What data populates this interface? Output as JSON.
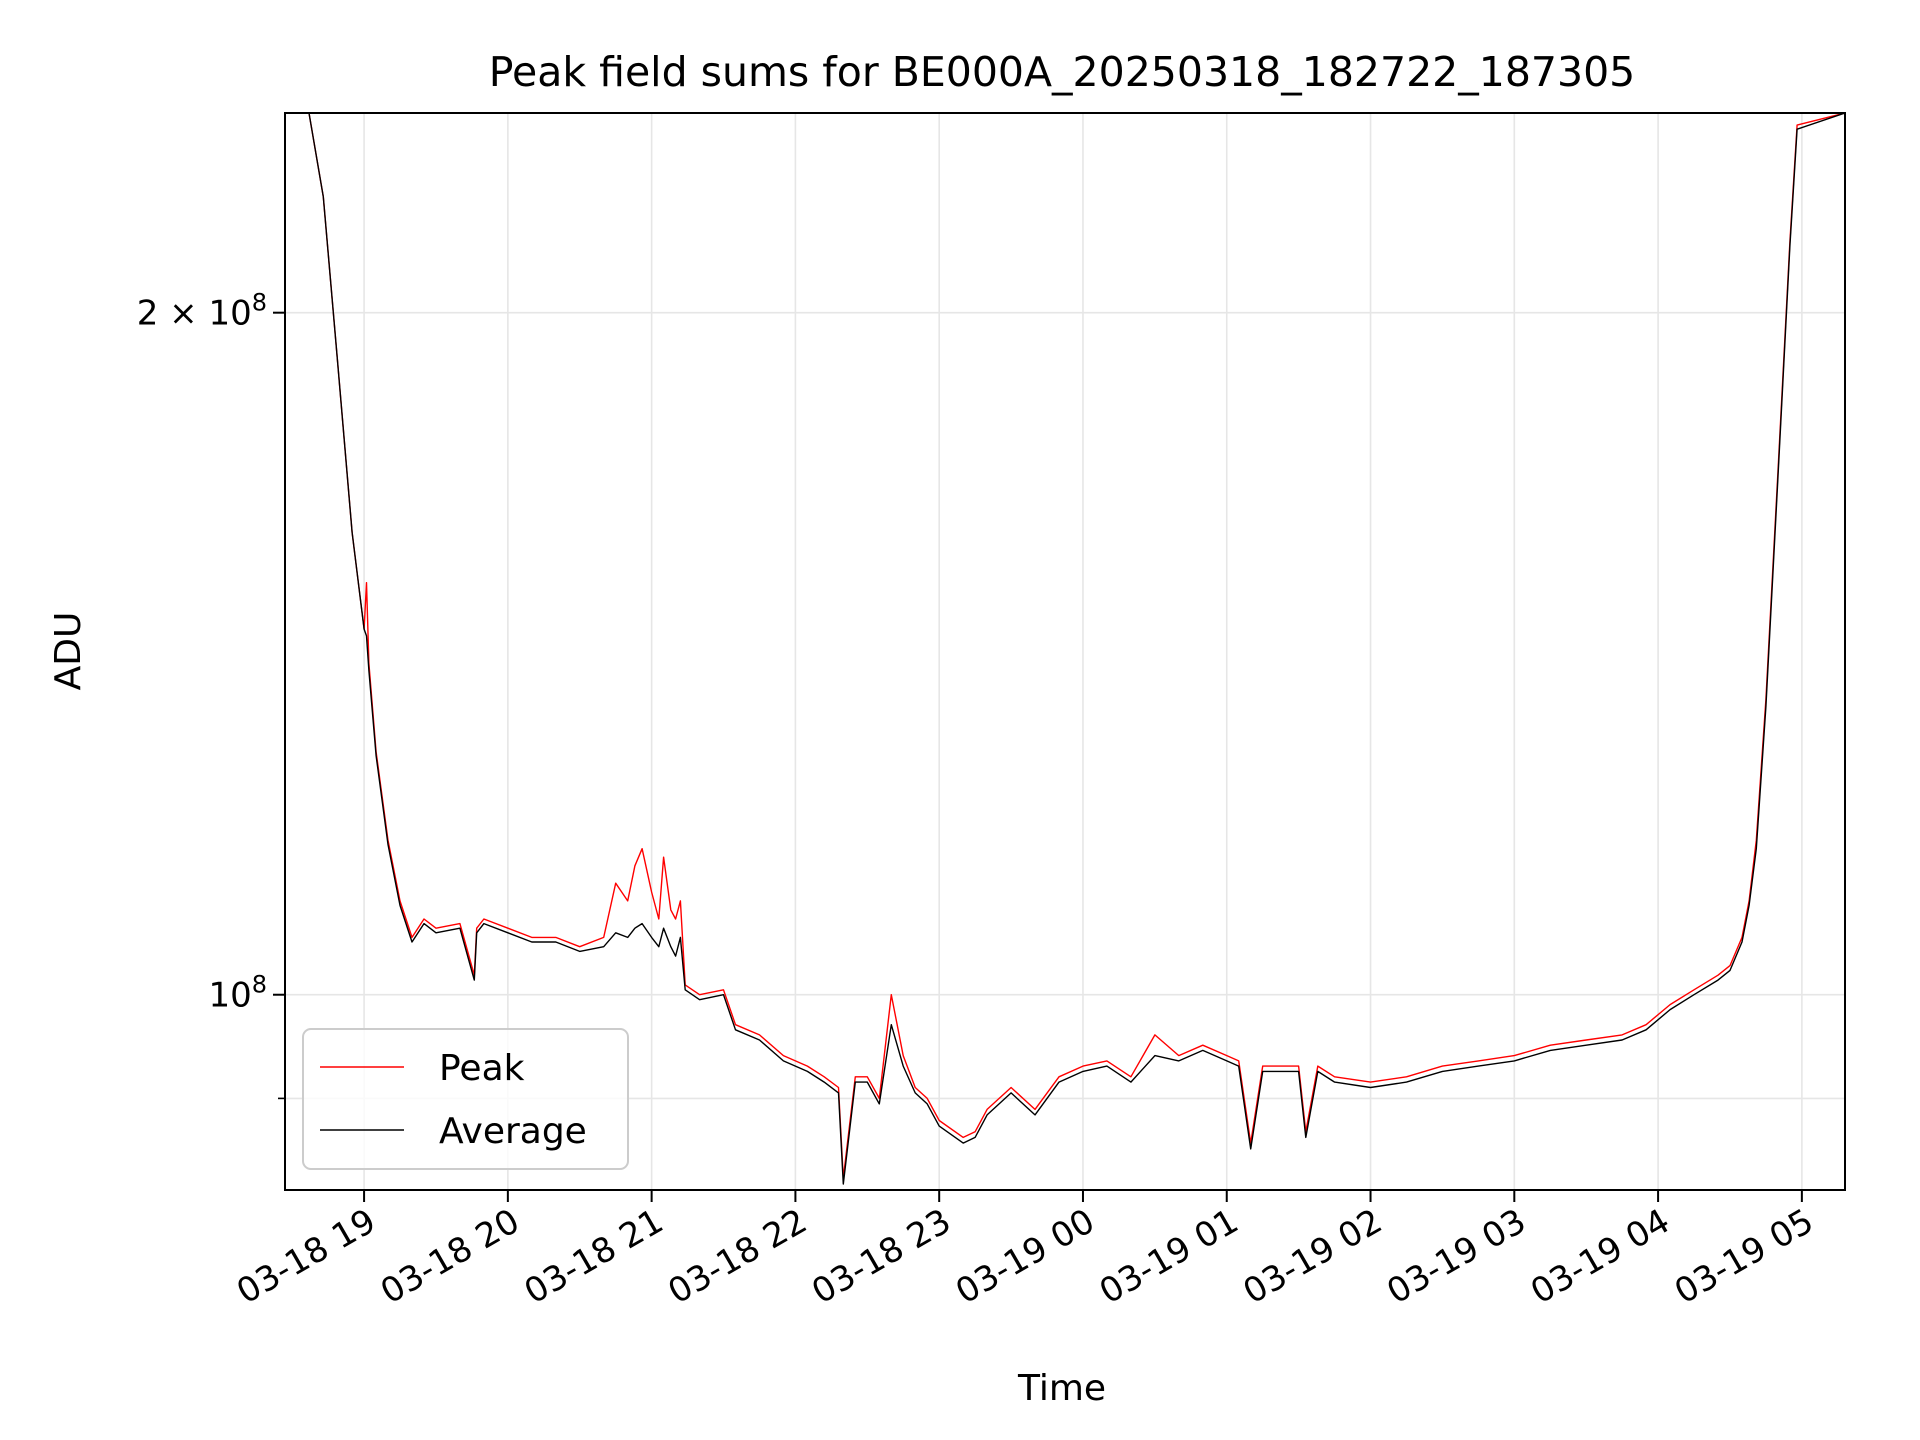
{
  "chart_data": {
    "type": "line",
    "title": "Peak field sums for BE000A_20250318_182722_187305",
    "xlabel": "Time",
    "ylabel": "ADU",
    "y_scale": "log",
    "ylim": [
      82000000,
      245000000
    ],
    "xlim": [
      "2025-03-18 18:27",
      "2025-03-19 05:18"
    ],
    "grid": true,
    "legend_position": "lower-left",
    "x_ticks": [
      {
        "label": "03-18 19",
        "t": "2025-03-18 19:00"
      },
      {
        "label": "03-18 20",
        "t": "2025-03-18 20:00"
      },
      {
        "label": "03-18 21",
        "t": "2025-03-18 21:00"
      },
      {
        "label": "03-18 22",
        "t": "2025-03-18 22:00"
      },
      {
        "label": "03-18 23",
        "t": "2025-03-18 23:00"
      },
      {
        "label": "03-19 00",
        "t": "2025-03-19 00:00"
      },
      {
        "label": "03-19 01",
        "t": "2025-03-19 01:00"
      },
      {
        "label": "03-19 02",
        "t": "2025-03-19 02:00"
      },
      {
        "label": "03-19 03",
        "t": "2025-03-19 03:00"
      },
      {
        "label": "03-19 04",
        "t": "2025-03-19 04:00"
      },
      {
        "label": "03-19 05",
        "t": "2025-03-19 05:00"
      }
    ],
    "y_ticks": [
      {
        "label": "2 × 10",
        "exp": "8",
        "value": 200000000
      },
      {
        "label": "10",
        "exp": "8",
        "value": 100000000
      }
    ],
    "y_minor_ticks": [
      90000000
    ],
    "series": [
      {
        "name": "Peak",
        "color": "#ff0000",
        "x": [
          "2025-03-18 18:27",
          "2025-03-18 18:37",
          "2025-03-18 18:43",
          "2025-03-18 18:49",
          "2025-03-18 18:55",
          "2025-03-18 19:00",
          "2025-03-18 19:01",
          "2025-03-18 19:02",
          "2025-03-18 19:05",
          "2025-03-18 19:10",
          "2025-03-18 19:15",
          "2025-03-18 19:20",
          "2025-03-18 19:25",
          "2025-03-18 19:30",
          "2025-03-18 19:40",
          "2025-03-18 19:46",
          "2025-03-18 19:47",
          "2025-03-18 19:50",
          "2025-03-18 20:00",
          "2025-03-18 20:10",
          "2025-03-18 20:20",
          "2025-03-18 20:30",
          "2025-03-18 20:40",
          "2025-03-18 20:45",
          "2025-03-18 20:50",
          "2025-03-18 20:53",
          "2025-03-18 20:56",
          "2025-03-18 21:00",
          "2025-03-18 21:03",
          "2025-03-18 21:05",
          "2025-03-18 21:08",
          "2025-03-18 21:10",
          "2025-03-18 21:12",
          "2025-03-18 21:14",
          "2025-03-18 21:20",
          "2025-03-18 21:30",
          "2025-03-18 21:35",
          "2025-03-18 21:45",
          "2025-03-18 21:55",
          "2025-03-18 22:05",
          "2025-03-18 22:12",
          "2025-03-18 22:18",
          "2025-03-18 22:20",
          "2025-03-18 22:25",
          "2025-03-18 22:30",
          "2025-03-18 22:35",
          "2025-03-18 22:40",
          "2025-03-18 22:45",
          "2025-03-18 22:50",
          "2025-03-18 22:55",
          "2025-03-18 23:00",
          "2025-03-18 23:10",
          "2025-03-18 23:15",
          "2025-03-18 23:20",
          "2025-03-18 23:30",
          "2025-03-18 23:40",
          "2025-03-18 23:50",
          "2025-03-19 00:00",
          "2025-03-19 00:10",
          "2025-03-19 00:20",
          "2025-03-19 00:30",
          "2025-03-19 00:40",
          "2025-03-19 00:50",
          "2025-03-19 01:00",
          "2025-03-19 01:05",
          "2025-03-19 01:10",
          "2025-03-19 01:15",
          "2025-03-19 01:30",
          "2025-03-19 01:33",
          "2025-03-19 01:38",
          "2025-03-19 01:45",
          "2025-03-19 02:00",
          "2025-03-19 02:15",
          "2025-03-19 02:30",
          "2025-03-19 02:45",
          "2025-03-19 03:00",
          "2025-03-19 03:15",
          "2025-03-19 03:30",
          "2025-03-19 03:45",
          "2025-03-19 03:55",
          "2025-03-19 04:05",
          "2025-03-19 04:15",
          "2025-03-19 04:25",
          "2025-03-19 04:30",
          "2025-03-19 04:35",
          "2025-03-19 04:38",
          "2025-03-19 04:41",
          "2025-03-19 04:45",
          "2025-03-19 04:50",
          "2025-03-19 04:55",
          "2025-03-19 04:58",
          "2025-03-19 05:18"
        ],
        "values": [
          245000000,
          245000000,
          225000000,
          190000000,
          160000000,
          145000000,
          152000000,
          140000000,
          128000000,
          117000000,
          110000000,
          106000000,
          108000000,
          107000000,
          107500000,
          102000000,
          107000000,
          108000000,
          107000000,
          106000000,
          106000000,
          105000000,
          106000000,
          112000000,
          110000000,
          114000000,
          116000000,
          111000000,
          108000000,
          115000000,
          109000000,
          108000000,
          110000000,
          101000000,
          100000000,
          100500000,
          97000000,
          96000000,
          94000000,
          93000000,
          92000000,
          91000000,
          83000000,
          92000000,
          92000000,
          90000000,
          100000000,
          94000000,
          91000000,
          90000000,
          88000000,
          86500000,
          87000000,
          89000000,
          91000000,
          89000000,
          92000000,
          93000000,
          93500000,
          92000000,
          96000000,
          94000000,
          95000000,
          94000000,
          93500000,
          86000000,
          93000000,
          93000000,
          87000000,
          93000000,
          92000000,
          91500000,
          92000000,
          93000000,
          93500000,
          94000000,
          95000000,
          95500000,
          96000000,
          97000000,
          99000000,
          100500000,
          102000000,
          103000000,
          106000000,
          110000000,
          117000000,
          135000000,
          170000000,
          215000000,
          242000000,
          245000000
        ]
      },
      {
        "name": "Average",
        "color": "#000000",
        "x": [
          "2025-03-18 18:27",
          "2025-03-18 18:37",
          "2025-03-18 18:43",
          "2025-03-18 18:49",
          "2025-03-18 18:55",
          "2025-03-18 19:00",
          "2025-03-18 19:01",
          "2025-03-18 19:02",
          "2025-03-18 19:05",
          "2025-03-18 19:10",
          "2025-03-18 19:15",
          "2025-03-18 19:20",
          "2025-03-18 19:25",
          "2025-03-18 19:30",
          "2025-03-18 19:40",
          "2025-03-18 19:46",
          "2025-03-18 19:47",
          "2025-03-18 19:50",
          "2025-03-18 20:00",
          "2025-03-18 20:10",
          "2025-03-18 20:20",
          "2025-03-18 20:30",
          "2025-03-18 20:40",
          "2025-03-18 20:45",
          "2025-03-18 20:50",
          "2025-03-18 20:53",
          "2025-03-18 20:56",
          "2025-03-18 21:00",
          "2025-03-18 21:03",
          "2025-03-18 21:05",
          "2025-03-18 21:08",
          "2025-03-18 21:10",
          "2025-03-18 21:12",
          "2025-03-18 21:14",
          "2025-03-18 21:20",
          "2025-03-18 21:30",
          "2025-03-18 21:35",
          "2025-03-18 21:45",
          "2025-03-18 21:55",
          "2025-03-18 22:05",
          "2025-03-18 22:12",
          "2025-03-18 22:18",
          "2025-03-18 22:20",
          "2025-03-18 22:25",
          "2025-03-18 22:30",
          "2025-03-18 22:35",
          "2025-03-18 22:40",
          "2025-03-18 22:45",
          "2025-03-18 22:50",
          "2025-03-18 22:55",
          "2025-03-18 23:00",
          "2025-03-18 23:10",
          "2025-03-18 23:15",
          "2025-03-18 23:20",
          "2025-03-18 23:30",
          "2025-03-18 23:40",
          "2025-03-18 23:50",
          "2025-03-19 00:00",
          "2025-03-19 00:10",
          "2025-03-19 00:20",
          "2025-03-19 00:30",
          "2025-03-19 00:40",
          "2025-03-19 00:50",
          "2025-03-19 01:00",
          "2025-03-19 01:05",
          "2025-03-19 01:10",
          "2025-03-19 01:15",
          "2025-03-19 01:30",
          "2025-03-19 01:33",
          "2025-03-19 01:38",
          "2025-03-19 01:45",
          "2025-03-19 02:00",
          "2025-03-19 02:15",
          "2025-03-19 02:30",
          "2025-03-19 02:45",
          "2025-03-19 03:00",
          "2025-03-19 03:15",
          "2025-03-19 03:30",
          "2025-03-19 03:45",
          "2025-03-19 03:55",
          "2025-03-19 04:05",
          "2025-03-19 04:15",
          "2025-03-19 04:25",
          "2025-03-19 04:30",
          "2025-03-19 04:35",
          "2025-03-19 04:38",
          "2025-03-19 04:41",
          "2025-03-19 04:45",
          "2025-03-19 04:50",
          "2025-03-19 04:55",
          "2025-03-19 04:58",
          "2025-03-19 05:18"
        ],
        "values": [
          245000000,
          245000000,
          225000000,
          190000000,
          160000000,
          145000000,
          144000000,
          139000000,
          127500000,
          116500000,
          109500000,
          105500000,
          107500000,
          106500000,
          107000000,
          101500000,
          106500000,
          107500000,
          106500000,
          105500000,
          105500000,
          104500000,
          105000000,
          106500000,
          106000000,
          107000000,
          107500000,
          106000000,
          105000000,
          107000000,
          105000000,
          104000000,
          106000000,
          100500000,
          99500000,
          100000000,
          96500000,
          95500000,
          93500000,
          92500000,
          91500000,
          90500000,
          82500000,
          91500000,
          91500000,
          89500000,
          97000000,
          93000000,
          90500000,
          89500000,
          87500000,
          86000000,
          86500000,
          88500000,
          90500000,
          88500000,
          91500000,
          92500000,
          93000000,
          91500000,
          94000000,
          93500000,
          94500000,
          93500000,
          93000000,
          85500000,
          92500000,
          92500000,
          86500000,
          92500000,
          91500000,
          91000000,
          91500000,
          92500000,
          93000000,
          93500000,
          94500000,
          95000000,
          95500000,
          96500000,
          98500000,
          100000000,
          101500000,
          102500000,
          105500000,
          109500000,
          116000000,
          134000000,
          169000000,
          214000000,
          241000000,
          245000000
        ]
      }
    ]
  }
}
